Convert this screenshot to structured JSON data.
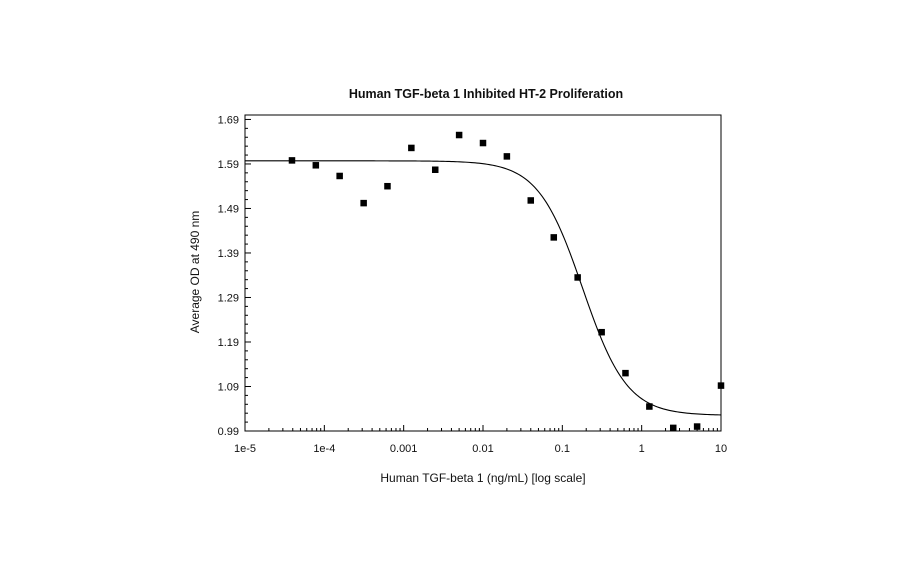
{
  "chart_data": {
    "type": "scatter",
    "title": "Human TGF-beta 1 Inhibited HT-2 Proliferation",
    "xlabel": "Human TGF-beta 1 (ng/mL) [log scale]",
    "ylabel": "Average OD at 490 nm",
    "x_scale": "log",
    "xlim": [
      1e-05,
      10
    ],
    "ylim": [
      0.99,
      1.7
    ],
    "x_ticks": [
      {
        "value": 1e-05,
        "label": "1e-5"
      },
      {
        "value": 0.0001,
        "label": "1e-4"
      },
      {
        "value": 0.001,
        "label": "0.001"
      },
      {
        "value": 0.01,
        "label": "0.01"
      },
      {
        "value": 0.1,
        "label": "0.1"
      },
      {
        "value": 1,
        "label": "1"
      },
      {
        "value": 10,
        "label": "10"
      }
    ],
    "y_ticks": [
      {
        "value": 0.99,
        "label": "0.99"
      },
      {
        "value": 1.09,
        "label": "1.09"
      },
      {
        "value": 1.19,
        "label": "1.19"
      },
      {
        "value": 1.29,
        "label": "1.29"
      },
      {
        "value": 1.39,
        "label": "1.39"
      },
      {
        "value": 1.49,
        "label": "1.49"
      },
      {
        "value": 1.59,
        "label": "1.59"
      },
      {
        "value": 1.69,
        "label": "1.69"
      }
    ],
    "grid": false,
    "series": [
      {
        "marker": "square",
        "color": "#000000",
        "points": [
          {
            "x": 3.91e-05,
            "y": 1.598
          },
          {
            "x": 7.81e-05,
            "y": 1.587
          },
          {
            "x": 0.000156,
            "y": 1.563
          },
          {
            "x": 0.000313,
            "y": 1.502
          },
          {
            "x": 0.000625,
            "y": 1.54
          },
          {
            "x": 0.00125,
            "y": 1.626
          },
          {
            "x": 0.0025,
            "y": 1.577
          },
          {
            "x": 0.005,
            "y": 1.655
          },
          {
            "x": 0.01,
            "y": 1.637
          },
          {
            "x": 0.02,
            "y": 1.607
          },
          {
            "x": 0.04,
            "y": 1.508
          },
          {
            "x": 0.078,
            "y": 1.425
          },
          {
            "x": 0.156,
            "y": 1.335
          },
          {
            "x": 0.313,
            "y": 1.212
          },
          {
            "x": 0.625,
            "y": 1.12
          },
          {
            "x": 1.25,
            "y": 1.045
          },
          {
            "x": 2.5,
            "y": 0.997
          },
          {
            "x": 5,
            "y": 1.0
          },
          {
            "x": 10,
            "y": 1.092
          }
        ]
      },
      {
        "type": "line",
        "style": "four-parameter logistic fit",
        "color": "#000000",
        "top": 1.597,
        "bottom": 1.025,
        "ec50": 0.18,
        "hill": 1.55
      }
    ]
  }
}
